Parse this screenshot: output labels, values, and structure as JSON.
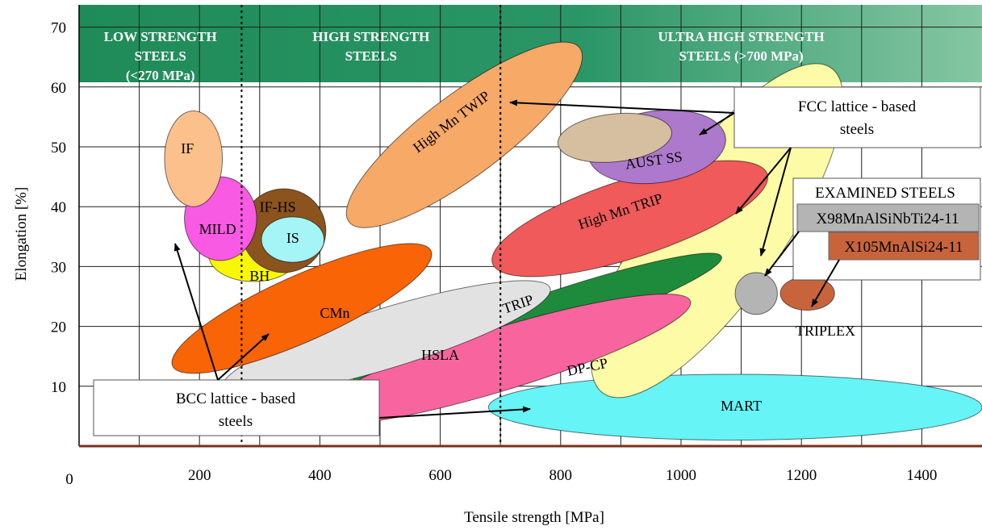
{
  "chart_data": {
    "type": "scatter",
    "title": "",
    "xlabel": "Tensile strength [MPa]",
    "ylabel": "Elongation [%]",
    "xlim": [
      0,
      1500
    ],
    "ylim": [
      0,
      75
    ],
    "x_ticks": [
      "200",
      "400",
      "600",
      "800",
      "1000",
      "1200",
      "1400"
    ],
    "y_ticks": [
      "10",
      "20",
      "30",
      "40",
      "50",
      "60",
      "70"
    ],
    "origin_label": "0",
    "grid": true,
    "bands": [
      {
        "label": [
          "LOW STRENGTH",
          "STEELS",
          "(<270 MPa)"
        ],
        "x_range": [
          0,
          270
        ]
      },
      {
        "label": [
          "HIGH STRENGTH",
          "STEELS"
        ],
        "x_range": [
          270,
          700
        ]
      },
      {
        "label": [
          "ULTRA HIGH STRENGTH",
          "STEELS (>700 MPa)"
        ],
        "x_range": [
          700,
          1500
        ]
      }
    ],
    "regions": [
      {
        "name": "MART",
        "color": "#66f4f6",
        "center": [
          1090,
          6.5
        ],
        "rx": 410,
        "ry": 5.5,
        "angle": 0,
        "label_at": [
          1100,
          6.5
        ]
      },
      {
        "name": "TRIPLEX",
        "color": "#fdfba5",
        "center": [
          1060,
          36
        ],
        "rx": 330,
        "ry": 11,
        "angle": 55,
        "label_at": [
          1240,
          19
        ]
      },
      {
        "name": "TRIP",
        "color": "#1e8b3c",
        "center": [
          760,
          21
        ],
        "rx": 325,
        "ry": 3.8,
        "angle": 19,
        "label_at": [
          730,
          23.5
        ],
        "text_angle": 19
      },
      {
        "name": "DP-CP",
        "color": "#f8659e",
        "center": [
          700,
          14.5
        ],
        "rx": 330,
        "ry": 5.2,
        "angle": 17,
        "label_at": [
          845,
          13
        ],
        "text_angle": 12
      },
      {
        "name": "HSLA",
        "color": "#e2e2e2",
        "center": [
          510,
          18
        ],
        "rx": 285,
        "ry": 5,
        "angle": 17,
        "label_at": [
          600,
          15
        ],
        "text_angle": 0
      },
      {
        "name": "CMn",
        "color": "#f86406",
        "center": [
          370,
          23
        ],
        "rx": 235,
        "ry": 5.5,
        "angle": 24,
        "label_at": [
          425,
          22
        ],
        "text_angle": 0
      },
      {
        "name": "BH",
        "color": "#f8f806",
        "center": [
          290,
          32
        ],
        "rx": 75,
        "ry": 4.5,
        "angle": 0,
        "label_at": [
          300,
          28.2
        ],
        "text_angle": 0
      },
      {
        "name": "IF-HS",
        "color": "#8b531d",
        "center": [
          340,
          36
        ],
        "rx": 70,
        "ry": 7,
        "angle": 0,
        "label_at": [
          330,
          39.7
        ],
        "text_angle": 0
      },
      {
        "name": "IS",
        "color": "#a5f4f6",
        "center": [
          355,
          34.5
        ],
        "rx": 52,
        "ry": 3.8,
        "angle": 0,
        "label_at": [
          355,
          34.5
        ],
        "text_angle": 0
      },
      {
        "name": "MILD",
        "color": "#f85ae3",
        "center": [
          235,
          38
        ],
        "rx": 60,
        "ry": 7,
        "angle": 0,
        "label_at": [
          230,
          36
        ],
        "text_angle": 0
      },
      {
        "name": "IF",
        "color": "#fbc08c",
        "center": [
          190,
          48
        ],
        "rx": 48,
        "ry": 8,
        "angle": 0,
        "label_at": [
          180,
          49.5
        ],
        "text_angle": 0
      },
      {
        "name": "High Mn TRIP",
        "color": "#f05a5a",
        "center": [
          915,
          38
        ],
        "rx": 240,
        "ry": 6.5,
        "angle": 18,
        "label_at": [
          900,
          39
        ],
        "text_angle": 18
      },
      {
        "name": "AUST SS",
        "color": "#ad79cc",
        "center": [
          960,
          50
        ],
        "rx": 115,
        "ry": 6,
        "angle": 8,
        "label_at": [
          955,
          47.5
        ],
        "text_angle": 8
      },
      {
        "name": "High Mn TWIP",
        "color": "#f7a967",
        "center": [
          640,
          52
        ],
        "rx": 240,
        "ry": 6.8,
        "angle": 37,
        "label_at": [
          620,
          54
        ],
        "text_angle": 37
      }
    ],
    "overlays": [
      {
        "name": "overlap-region",
        "color": "#d6bea0",
        "center": [
          890,
          51.5
        ],
        "rx": 95,
        "ry": 4,
        "angle": 6
      }
    ],
    "examined_points": [
      {
        "name": "X98MnAlSiNbTi24-11",
        "color": "#b4b4b4",
        "center": [
          1125,
          25.5
        ],
        "rx": 35,
        "ry": 3.5
      },
      {
        "name": "X105MnAlSi24-11",
        "color": "#c8643c",
        "center": [
          1210,
          25.5
        ],
        "rx": 45,
        "ry": 2.8
      }
    ],
    "annotations": [
      {
        "text": [
          "FCC lattice - based",
          "steels"
        ]
      },
      {
        "text": [
          "BCC lattice - based",
          "steels"
        ]
      },
      {
        "text": [
          "EXAMINED STEELS"
        ]
      }
    ]
  }
}
